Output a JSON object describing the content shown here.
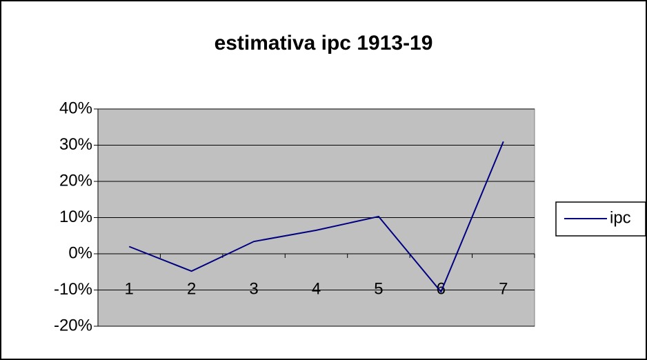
{
  "chart_data": {
    "type": "line",
    "title": "estimativa ipc 1913-19",
    "categories": [
      1,
      2,
      3,
      4,
      5,
      6,
      7
    ],
    "series": [
      {
        "name": "ipc",
        "color": "#000080",
        "values": [
          2,
          -4.8,
          3.4,
          6.5,
          10.3,
          -10.5,
          31
        ]
      }
    ],
    "ylim": [
      -20,
      40
    ],
    "yticks": [
      {
        "value": -20,
        "label": "-20%"
      },
      {
        "value": -10,
        "label": "-10%"
      },
      {
        "value": 0,
        "label": "0%"
      },
      {
        "value": 10,
        "label": "10%"
      },
      {
        "value": 20,
        "label": "20%"
      },
      {
        "value": 30,
        "label": "30%"
      },
      {
        "value": 40,
        "label": "40%"
      }
    ],
    "grid": true,
    "legend": "right",
    "plot_background": "#c0c0c0"
  }
}
